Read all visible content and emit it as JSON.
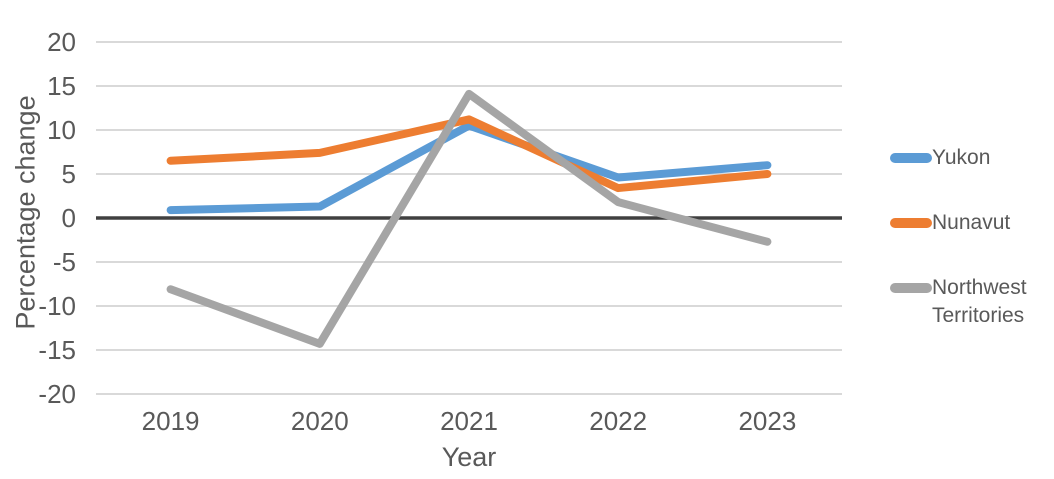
{
  "chart_data": {
    "type": "line",
    "title": "",
    "xlabel": "Year",
    "ylabel": "Percentage change",
    "categories": [
      "2019",
      "2020",
      "2021",
      "2022",
      "2023"
    ],
    "series": [
      {
        "name": "Yukon",
        "color": "#5B9BD5",
        "values": [
          0.9,
          1.3,
          10.5,
          4.6,
          6.0
        ]
      },
      {
        "name": "Nunavut",
        "color": "#ED7D31",
        "values": [
          6.5,
          7.4,
          11.2,
          3.4,
          5.0
        ]
      },
      {
        "name": "Northwest Territories",
        "color": "#A5A5A5",
        "values": [
          -8.1,
          -14.3,
          14.1,
          1.8,
          -2.7
        ]
      }
    ],
    "y_ticks": [
      20,
      15,
      10,
      5,
      0,
      -5,
      -10,
      -15,
      -20
    ],
    "ylim": [
      -20,
      20
    ],
    "grid": true,
    "zero_line": true,
    "legend_position": "right"
  },
  "styles": {
    "text_color": "#595959",
    "gridline_color": "#D9D9D9",
    "zero_line_color": "#404040",
    "background": "#FFFFFF"
  }
}
